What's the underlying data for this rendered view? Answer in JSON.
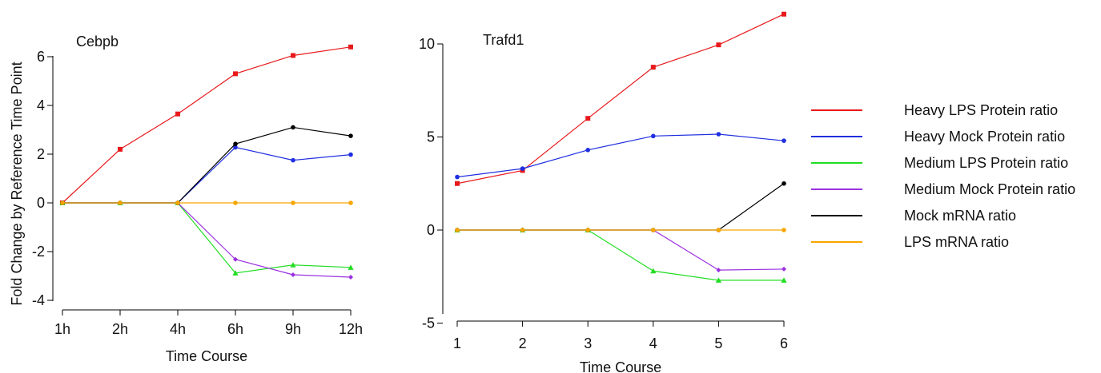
{
  "legend": {
    "items": [
      {
        "label": "Heavy LPS Protein ratio",
        "color": "#e8191b"
      },
      {
        "label": "Heavy Mock Protein ratio",
        "color": "#1f2fe0"
      },
      {
        "label": "Medium LPS Protein ratio",
        "color": "#22dd22"
      },
      {
        "label": "Medium Mock Protein ratio",
        "color": "#9b30e0"
      },
      {
        "label": "Mock mRNA ratio",
        "color": "#000000"
      },
      {
        "label": "LPS mRNA ratio",
        "color": "#f7a600"
      }
    ]
  },
  "chart_data": [
    {
      "type": "line",
      "title": "Cebpb",
      "xlabel": "Time Course",
      "ylabel": "Fold Change by Reference Time Point",
      "categories": [
        "1h",
        "2h",
        "4h",
        "6h",
        "9h",
        "12h"
      ],
      "yticks": [
        "6",
        "4",
        "2",
        "0",
        "-2",
        "-4"
      ],
      "ytick_values": [
        6,
        4,
        2,
        0,
        -2,
        -4
      ],
      "ylim": [
        -4,
        6
      ],
      "grid": false,
      "series": [
        {
          "name": "Heavy LPS Protein ratio",
          "color": "#e8191b",
          "marker": "square",
          "values": [
            0,
            2.2,
            3.65,
            5.3,
            6.05,
            6.4
          ]
        },
        {
          "name": "Heavy Mock Protein ratio",
          "color": "#1f2fe0",
          "marker": "circle",
          "values": [
            0,
            0,
            0,
            2.28,
            1.75,
            1.98
          ]
        },
        {
          "name": "Medium LPS Protein ratio",
          "color": "#22dd22",
          "marker": "triangle",
          "values": [
            0,
            0,
            0,
            -2.88,
            -2.55,
            -2.65
          ]
        },
        {
          "name": "Medium Mock Protein ratio",
          "color": "#9b30e0",
          "marker": "diamond",
          "values": [
            0,
            0,
            0,
            -2.32,
            -2.95,
            -3.05
          ]
        },
        {
          "name": "Mock mRNA ratio",
          "color": "#000000",
          "marker": "circle",
          "values": [
            0,
            0,
            0,
            2.42,
            3.1,
            2.75
          ]
        },
        {
          "name": "LPS mRNA ratio",
          "color": "#f7a600",
          "marker": "circle",
          "values": [
            0,
            0,
            0,
            0,
            0,
            0
          ]
        }
      ]
    },
    {
      "type": "line",
      "title": "Trafd1",
      "xlabel": "Time Course",
      "ylabel": "",
      "categories": [
        "1",
        "2",
        "3",
        "4",
        "5",
        "6"
      ],
      "yticks": [
        "10",
        "5",
        "0",
        "-5"
      ],
      "ytick_values": [
        10,
        5,
        0,
        -5
      ],
      "ylim": [
        -5,
        10
      ],
      "grid": false,
      "series": [
        {
          "name": "Heavy LPS Protein ratio",
          "color": "#e8191b",
          "marker": "square",
          "values": [
            2.5,
            3.2,
            6.0,
            8.75,
            9.95,
            11.6
          ]
        },
        {
          "name": "Heavy Mock Protein ratio",
          "color": "#1f2fe0",
          "marker": "circle",
          "values": [
            2.85,
            3.3,
            4.3,
            5.05,
            5.15,
            4.8
          ]
        },
        {
          "name": "Medium LPS Protein ratio",
          "color": "#22dd22",
          "marker": "triangle",
          "values": [
            0,
            0,
            0,
            -2.2,
            -2.7,
            -2.7
          ]
        },
        {
          "name": "Medium Mock Protein ratio",
          "color": "#9b30e0",
          "marker": "diamond",
          "values": [
            0,
            0,
            0,
            0,
            -2.15,
            -2.1
          ]
        },
        {
          "name": "Mock mRNA ratio",
          "color": "#000000",
          "marker": "circle",
          "values": [
            0,
            0,
            0,
            0,
            0,
            2.5
          ]
        },
        {
          "name": "LPS mRNA ratio",
          "color": "#f7a600",
          "marker": "circle",
          "values": [
            0,
            0,
            0,
            0,
            0,
            0
          ]
        }
      ]
    }
  ]
}
